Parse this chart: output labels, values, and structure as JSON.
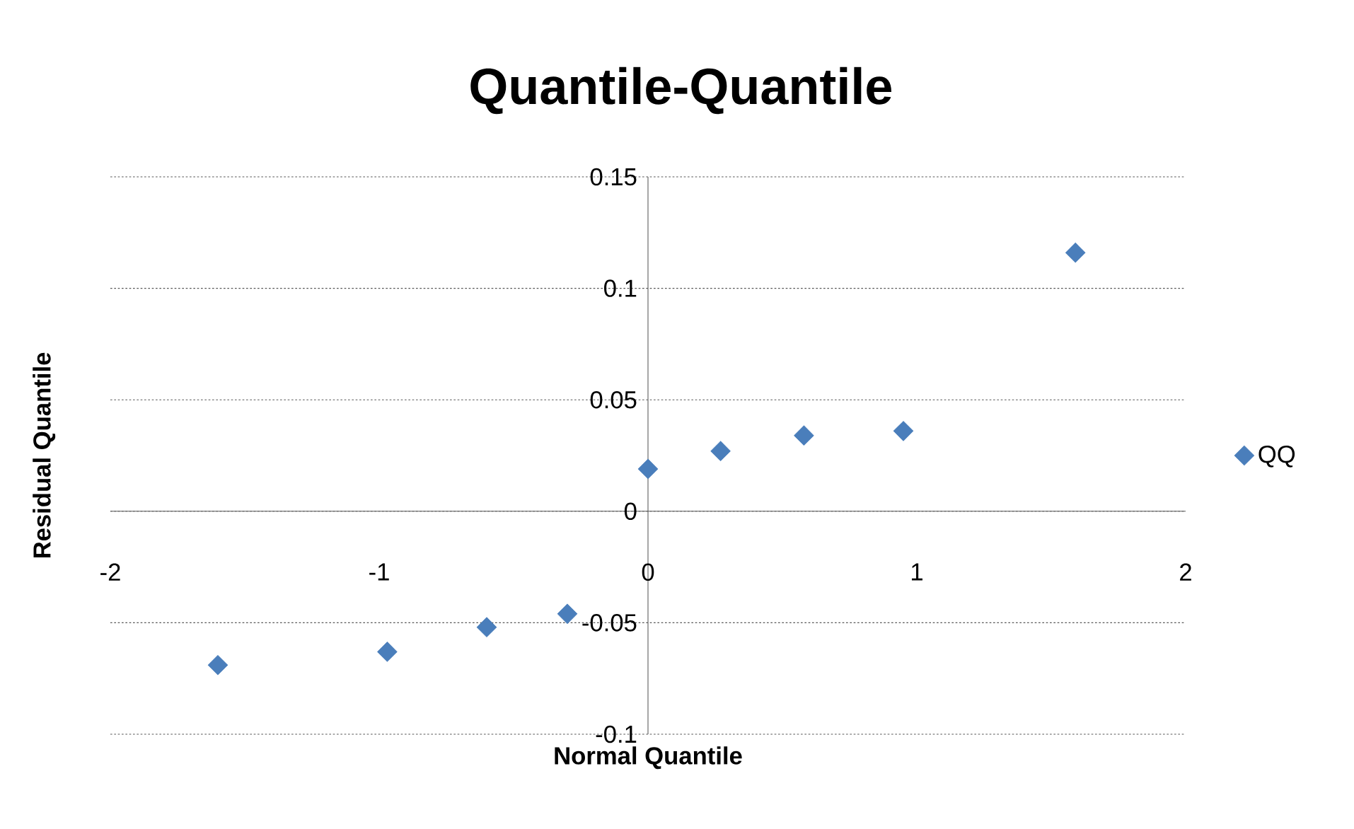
{
  "chart_data": {
    "type": "scatter",
    "title": "Quantile-Quantile",
    "xlabel": "Normal Quantile",
    "ylabel": "Residual Quantile",
    "x": [
      -1.6,
      -0.97,
      -0.6,
      -0.3,
      0,
      0.27,
      0.58,
      0.95,
      1.59
    ],
    "series": [
      {
        "name": "QQ",
        "color": "#4a7ebb",
        "values": [
          -0.069,
          -0.063,
          -0.052,
          -0.046,
          0.019,
          0.027,
          0.034,
          0.036,
          0.116
        ]
      }
    ],
    "xlim": [
      -2,
      2
    ],
    "ylim": [
      -0.1,
      0.15
    ],
    "xticks": [
      -2,
      -1,
      0,
      1,
      2
    ],
    "yticks": [
      -0.1,
      -0.05,
      0,
      0.05,
      0.1,
      0.15
    ],
    "grid": "y",
    "legend": "right",
    "marker": "diamond"
  }
}
